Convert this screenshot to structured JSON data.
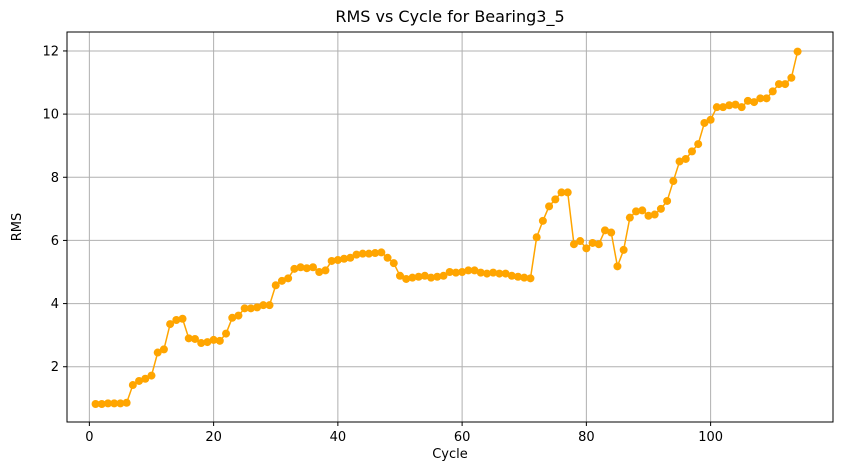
{
  "chart_data": {
    "type": "line",
    "title": "RMS vs Cycle for Bearing3_5",
    "xlabel": "Cycle",
    "ylabel": "RMS",
    "xlim": [
      -3.6,
      119.7
    ],
    "ylim": [
      0.25,
      12.6
    ],
    "xticks": [
      0,
      20,
      40,
      60,
      80,
      100
    ],
    "yticks": [
      2,
      4,
      6,
      8,
      10,
      12
    ],
    "grid": true,
    "series": [
      {
        "color": "#ffa500",
        "marker": "circle",
        "x": [
          1,
          2,
          3,
          4,
          5,
          6,
          7,
          8,
          9,
          10,
          11,
          12,
          13,
          14,
          15,
          16,
          17,
          18,
          19,
          20,
          21,
          22,
          23,
          24,
          25,
          26,
          27,
          28,
          29,
          30,
          31,
          32,
          33,
          34,
          35,
          36,
          37,
          38,
          39,
          40,
          41,
          42,
          43,
          44,
          45,
          46,
          47,
          48,
          49,
          50,
          51,
          52,
          53,
          54,
          55,
          56,
          57,
          58,
          59,
          60,
          61,
          62,
          63,
          64,
          65,
          66,
          67,
          68,
          69,
          70,
          71,
          72,
          73,
          74,
          75,
          76,
          77,
          78,
          79,
          80,
          81,
          82,
          83,
          84,
          85,
          86,
          87,
          88,
          89,
          90,
          91,
          92,
          93,
          94,
          95,
          96,
          97,
          98,
          99,
          100,
          101,
          102,
          103,
          104,
          105,
          106,
          107,
          108,
          109,
          110,
          111,
          112,
          113,
          114
        ],
        "y": [
          0.82,
          0.82,
          0.84,
          0.84,
          0.84,
          0.86,
          1.42,
          1.55,
          1.62,
          1.72,
          2.45,
          2.55,
          3.35,
          3.48,
          3.52,
          2.9,
          2.88,
          2.75,
          2.78,
          2.85,
          2.82,
          3.05,
          3.55,
          3.62,
          3.85,
          3.85,
          3.88,
          3.95,
          3.95,
          4.58,
          4.72,
          4.8,
          5.1,
          5.15,
          5.12,
          5.15,
          5.0,
          5.05,
          5.35,
          5.38,
          5.42,
          5.45,
          5.55,
          5.58,
          5.58,
          5.6,
          5.62,
          5.45,
          5.28,
          4.88,
          4.78,
          4.82,
          4.85,
          4.88,
          4.82,
          4.85,
          4.88,
          5.0,
          4.98,
          5.0,
          5.05,
          5.05,
          4.98,
          4.95,
          4.98,
          4.95,
          4.95,
          4.88,
          4.85,
          4.82,
          4.8,
          6.1,
          6.62,
          7.08,
          7.3,
          7.52,
          7.52,
          5.88,
          5.98,
          5.75,
          5.92,
          5.88,
          6.32,
          6.25,
          5.18,
          5.7,
          6.72,
          6.92,
          6.95,
          6.78,
          6.82,
          7.0,
          7.25,
          7.88,
          8.5,
          8.58,
          8.82,
          9.05,
          9.72,
          9.82,
          10.22,
          10.22,
          10.28,
          10.3,
          10.22,
          10.42,
          10.38,
          10.5,
          10.5,
          10.72,
          10.95,
          10.95,
          11.15,
          11.98
        ]
      }
    ]
  }
}
